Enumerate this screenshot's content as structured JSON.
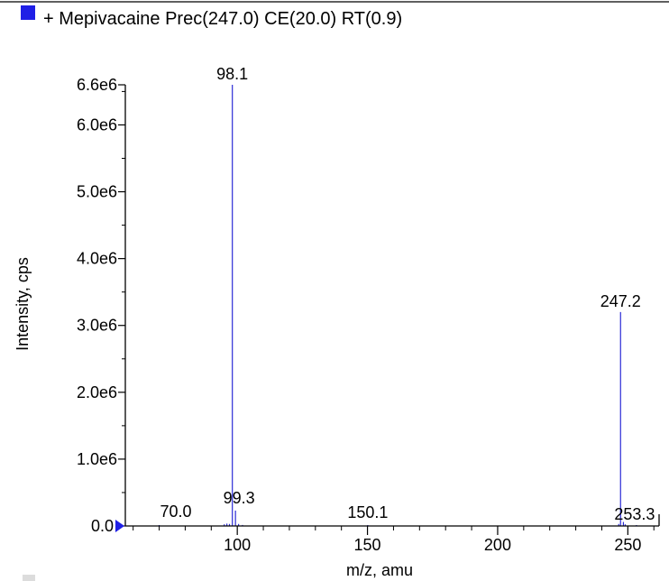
{
  "legend": {
    "swatch_color": "#1f1fe6",
    "label": "+ Mepivacaine Prec(247.0) CE(20.0) RT(0.9)"
  },
  "chart_data": {
    "type": "bar",
    "xlabel": "m/z, amu",
    "ylabel": "Intensity, cps",
    "xlim": [
      57,
      262
    ],
    "ylim": [
      0,
      6600000.0
    ],
    "ymax_label": "6.6e6",
    "x_ticks": [
      {
        "value": 100,
        "label": "100"
      },
      {
        "value": 150,
        "label": "150"
      },
      {
        "value": 200,
        "label": "200"
      },
      {
        "value": 250,
        "label": "250"
      }
    ],
    "y_ticks": [
      {
        "value": 0,
        "label": "0.0"
      },
      {
        "value": 1000000,
        "label": "1.0e6"
      },
      {
        "value": 2000000,
        "label": "2.0e6"
      },
      {
        "value": 3000000,
        "label": "3.0e6"
      },
      {
        "value": 4000000,
        "label": "4.0e6"
      },
      {
        "value": 5000000,
        "label": "5.0e6"
      },
      {
        "value": 6000000,
        "label": "6.0e6"
      }
    ],
    "series_color": "#2b2bd6",
    "peaks": [
      {
        "x": 70.0,
        "y": 8000,
        "label": "70.0"
      },
      {
        "x": 95.0,
        "y": 25000
      },
      {
        "x": 96.0,
        "y": 35000
      },
      {
        "x": 97.0,
        "y": 30000
      },
      {
        "x": 98.1,
        "y": 6600000,
        "label": "98.1"
      },
      {
        "x": 99.3,
        "y": 230000,
        "label": "99.3"
      },
      {
        "x": 100.5,
        "y": 30000
      },
      {
        "x": 102.0,
        "y": 15000
      },
      {
        "x": 150.1,
        "y": 12000,
        "label": "150.1"
      },
      {
        "x": 246.5,
        "y": 30000
      },
      {
        "x": 247.2,
        "y": 3200000,
        "label": "247.2"
      },
      {
        "x": 248.3,
        "y": 60000
      },
      {
        "x": 249.0,
        "y": 25000
      },
      {
        "x": 253.3,
        "y": 10000,
        "label": "253.3"
      }
    ]
  }
}
